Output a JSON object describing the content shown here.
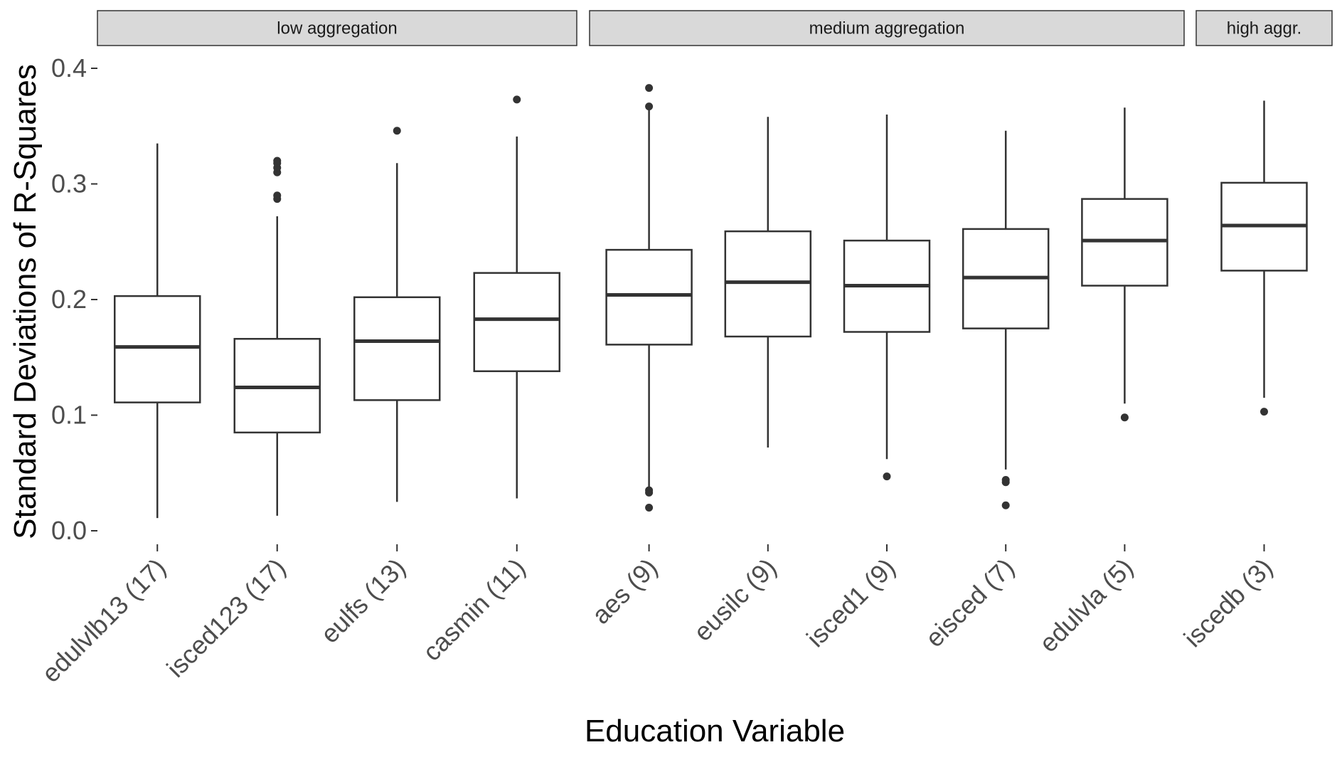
{
  "chart_data": {
    "type": "boxplot",
    "xlabel": "Education Variable",
    "ylabel": "Standard Deviations of R-Squares",
    "ylim": [
      0,
      0.4
    ],
    "yticks": [
      "0.0",
      "0.1",
      "0.2",
      "0.3",
      "0.4"
    ],
    "grid": false,
    "facets": [
      {
        "label": "low aggregation",
        "groups": [
          {
            "label": "edulvlb13 (17)",
            "min": 0.011,
            "q1": 0.111,
            "median": 0.159,
            "q3": 0.203,
            "max": 0.335,
            "outliers": []
          },
          {
            "label": "isced123 (17)",
            "min": 0.013,
            "q1": 0.085,
            "median": 0.124,
            "q3": 0.166,
            "max": 0.272,
            "outliers": [
              0.287,
              0.29,
              0.31,
              0.314,
              0.318,
              0.32
            ]
          },
          {
            "label": "eulfs (13)",
            "min": 0.025,
            "q1": 0.113,
            "median": 0.164,
            "q3": 0.202,
            "max": 0.318,
            "outliers": [
              0.346
            ]
          },
          {
            "label": "casmin (11)",
            "min": 0.028,
            "q1": 0.138,
            "median": 0.183,
            "q3": 0.223,
            "max": 0.341,
            "outliers": [
              0.373
            ]
          }
        ]
      },
      {
        "label": "medium aggregation",
        "groups": [
          {
            "label": "aes (9)",
            "min": 0.037,
            "q1": 0.161,
            "median": 0.204,
            "q3": 0.243,
            "max": 0.366,
            "outliers": [
              0.02,
              0.033,
              0.035,
              0.367,
              0.383
            ]
          },
          {
            "label": "eusilc (9)",
            "min": 0.072,
            "q1": 0.168,
            "median": 0.215,
            "q3": 0.259,
            "max": 0.358,
            "outliers": []
          },
          {
            "label": "isced1 (9)",
            "min": 0.062,
            "q1": 0.172,
            "median": 0.212,
            "q3": 0.251,
            "max": 0.36,
            "outliers": [
              0.047
            ]
          },
          {
            "label": "eisced (7)",
            "min": 0.053,
            "q1": 0.175,
            "median": 0.219,
            "q3": 0.261,
            "max": 0.346,
            "outliers": [
              0.022,
              0.042,
              0.044
            ]
          },
          {
            "label": "edulvla (5)",
            "min": 0.11,
            "q1": 0.212,
            "median": 0.251,
            "q3": 0.287,
            "max": 0.366,
            "outliers": [
              0.098
            ]
          }
        ]
      },
      {
        "label": "high aggr.",
        "groups": [
          {
            "label": "iscedb (3)",
            "min": 0.115,
            "q1": 0.225,
            "median": 0.264,
            "q3": 0.301,
            "max": 0.372,
            "outliers": [
              0.103
            ]
          }
        ]
      }
    ],
    "colors": {
      "box_stroke": "#333333",
      "box_fill": "#ffffff",
      "strip_fill": "#d9d9d9",
      "strip_stroke": "#333333",
      "text": "#4d4d4d",
      "title_text": "#000000"
    }
  }
}
